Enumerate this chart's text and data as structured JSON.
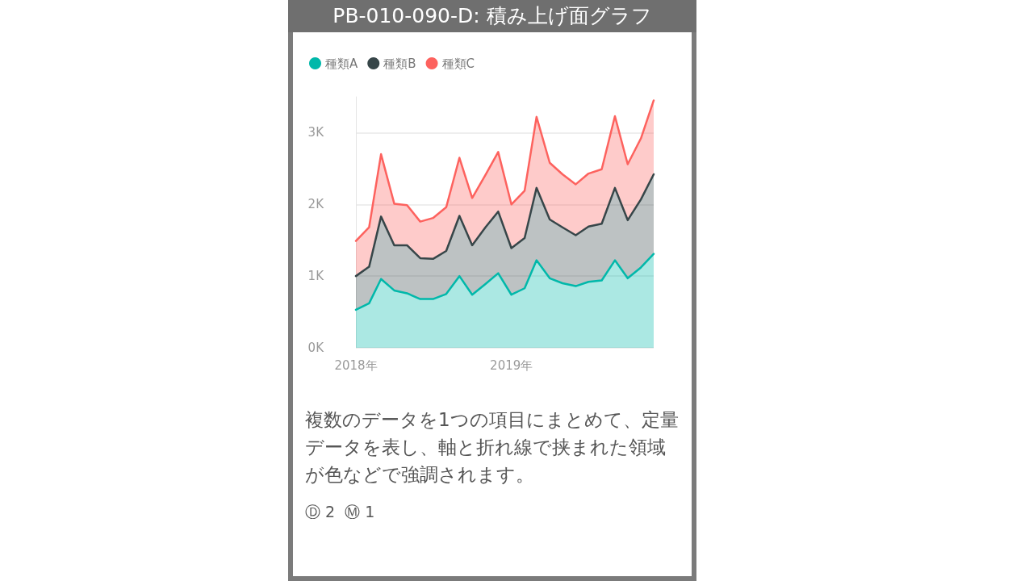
{
  "chart_data": {
    "type": "area",
    "title": "PB-010-090-D: 積み上げ面グラフ",
    "x": [
      "2018-01",
      "2018-02",
      "2018-03",
      "2018-04",
      "2018-05",
      "2018-06",
      "2018-07",
      "2018-08",
      "2018-09",
      "2018-10",
      "2018-11",
      "2018-12",
      "2019-01",
      "2019-02",
      "2019-03",
      "2019-04",
      "2019-05",
      "2019-06",
      "2019-07",
      "2019-08",
      "2019-09",
      "2019-10",
      "2019-11",
      "2019-12"
    ],
    "series": [
      {
        "name": "種類A",
        "color": "#01b8aa",
        "values": [
          530,
          620,
          960,
          800,
          760,
          680,
          680,
          750,
          1000,
          740,
          890,
          1040,
          740,
          830,
          1220,
          970,
          900,
          860,
          920,
          940,
          1220,
          970,
          1120,
          1310
        ]
      },
      {
        "name": "種類B",
        "color": "#374649",
        "values": [
          470,
          510,
          870,
          630,
          670,
          570,
          560,
          600,
          840,
          690,
          790,
          860,
          650,
          700,
          1010,
          820,
          780,
          710,
          770,
          790,
          1010,
          810,
          950,
          1110
        ]
      },
      {
        "name": "種類C",
        "color": "#fd625e",
        "values": [
          490,
          550,
          870,
          580,
          560,
          510,
          570,
          610,
          810,
          660,
          730,
          830,
          610,
          660,
          990,
          790,
          740,
          710,
          740,
          760,
          1000,
          780,
          850,
          1030
        ]
      }
    ],
    "stacked": true,
    "xlim": [
      "2018-01",
      "2019-12"
    ],
    "xticks": [
      {
        "value": "2018-01",
        "label": "2018年"
      },
      {
        "value": "2019-01",
        "label": "2019年"
      }
    ],
    "ylim": [
      0,
      3500
    ],
    "yticks": [
      {
        "value": 0,
        "label": "0K"
      },
      {
        "value": 1000,
        "label": "1K"
      },
      {
        "value": 2000,
        "label": "2K"
      },
      {
        "value": 3000,
        "label": "3K"
      }
    ],
    "grid": "y",
    "legend": "top left",
    "annotations": [
      "複数のデータを1つの項目にまとめて、定量データを表し、軸と折れ線で挟まれた領域が色などで強調されます。",
      "Ⓓ 2  Ⓜ 1"
    ]
  }
}
